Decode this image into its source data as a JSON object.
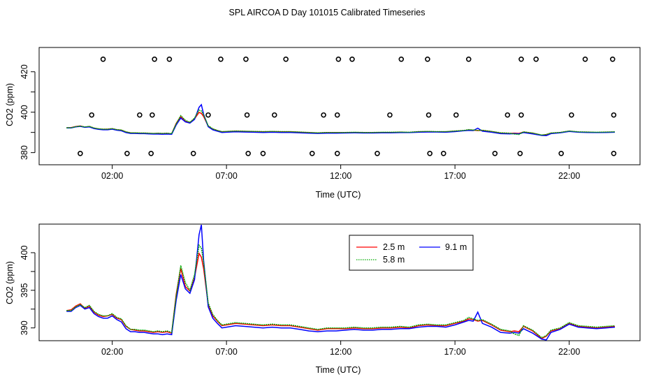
{
  "figure": {
    "title": "SPL AIRCOA D  Day 101015  Calibrated Timeseries"
  },
  "colors": {
    "s2_5": "#ff0000",
    "s5_8": "#00aa00",
    "s9_1": "#0000ff",
    "axis": "#000000"
  },
  "chart_data": [
    {
      "type": "line",
      "title": "SPL AIRCOA D  Day 101015  Calibrated Timeseries",
      "xlabel": "Time (UTC)",
      "ylabel": "CO2 (ppm)",
      "x_tick_labels": [
        "02:00",
        "07:00",
        "12:00",
        "17:00",
        "22:00"
      ],
      "x_tick_hours": [
        2,
        7,
        12,
        17,
        22
      ],
      "xlim_hours": [
        -1.2,
        25.1
      ],
      "y_ticks": [
        380,
        400,
        420
      ],
      "ylim": [
        374,
        432
      ],
      "grid": false,
      "series": [
        {
          "name": "2.5 m",
          "color": "#ff0000",
          "style": "solid"
        },
        {
          "name": "5.8 m",
          "color": "#00aa00",
          "style": "dotted"
        },
        {
          "name": "9.1 m",
          "color": "#0000ff",
          "style": "solid"
        }
      ],
      "series_source": "shared_timeseries",
      "calibration_points": [
        {
          "hour": 0.6,
          "value": 379.6
        },
        {
          "hour": 1.1,
          "value": 398.6
        },
        {
          "hour": 1.6,
          "value": 426.2
        },
        {
          "hour": 2.65,
          "value": 379.6
        },
        {
          "hour": 3.2,
          "value": 398.6
        },
        {
          "hour": 3.7,
          "value": 379.6
        },
        {
          "hour": 3.75,
          "value": 398.6
        },
        {
          "hour": 3.85,
          "value": 426.2
        },
        {
          "hour": 4.5,
          "value": 426.2
        },
        {
          "hour": 5.55,
          "value": 379.6
        },
        {
          "hour": 6.2,
          "value": 398.6
        },
        {
          "hour": 6.75,
          "value": 426.2
        },
        {
          "hour": 7.85,
          "value": 426.2
        },
        {
          "hour": 7.9,
          "value": 398.6
        },
        {
          "hour": 7.95,
          "value": 379.6
        },
        {
          "hour": 8.6,
          "value": 379.6
        },
        {
          "hour": 9.1,
          "value": 398.6
        },
        {
          "hour": 9.6,
          "value": 426.2
        },
        {
          "hour": 10.75,
          "value": 379.6
        },
        {
          "hour": 11.25,
          "value": 398.6
        },
        {
          "hour": 11.85,
          "value": 379.6
        },
        {
          "hour": 11.85,
          "value": 398.6
        },
        {
          "hour": 11.9,
          "value": 426.2
        },
        {
          "hour": 12.5,
          "value": 426.2
        },
        {
          "hour": 13.6,
          "value": 379.6
        },
        {
          "hour": 14.15,
          "value": 398.6
        },
        {
          "hour": 14.65,
          "value": 426.2
        },
        {
          "hour": 15.8,
          "value": 426.2
        },
        {
          "hour": 15.85,
          "value": 398.6
        },
        {
          "hour": 15.9,
          "value": 379.6
        },
        {
          "hour": 16.5,
          "value": 379.6
        },
        {
          "hour": 17.05,
          "value": 398.6
        },
        {
          "hour": 17.6,
          "value": 426.2
        },
        {
          "hour": 18.75,
          "value": 379.6
        },
        {
          "hour": 19.3,
          "value": 398.6
        },
        {
          "hour": 19.85,
          "value": 379.6
        },
        {
          "hour": 19.9,
          "value": 398.6
        },
        {
          "hour": 19.9,
          "value": 426.2
        },
        {
          "hour": 20.55,
          "value": 426.2
        },
        {
          "hour": 21.65,
          "value": 379.6
        },
        {
          "hour": 22.1,
          "value": 398.6
        },
        {
          "hour": 22.7,
          "value": 426.2
        },
        {
          "hour": 23.9,
          "value": 426.2
        },
        {
          "hour": 23.95,
          "value": 398.6
        },
        {
          "hour": 23.95,
          "value": 379.6
        }
      ]
    },
    {
      "type": "line",
      "xlabel": "Time (UTC)",
      "ylabel": "CO2 (ppm)",
      "x_tick_labels": [
        "02:00",
        "07:00",
        "12:00",
        "17:00",
        "22:00"
      ],
      "x_tick_hours": [
        2,
        7,
        12,
        17,
        22
      ],
      "xlim_hours": [
        -1.2,
        25.1
      ],
      "y_ticks": [
        390,
        395,
        400
      ],
      "ylim": [
        388.3,
        403.8
      ],
      "grid": false,
      "legend": {
        "position": "top-center"
      },
      "legend_labels": [
        "2.5 m",
        "5.8 m",
        "9.1 m"
      ],
      "x": [
        0.0,
        0.2,
        0.4,
        0.6,
        0.8,
        1.0,
        1.2,
        1.4,
        1.6,
        1.8,
        2.0,
        2.2,
        2.4,
        2.6,
        2.8,
        3.0,
        3.2,
        3.4,
        3.6,
        3.8,
        4.0,
        4.2,
        4.4,
        4.6,
        4.8,
        5.0,
        5.2,
        5.4,
        5.6,
        5.8,
        5.9,
        6.0,
        6.2,
        6.4,
        6.6,
        6.8,
        7.0,
        7.4,
        7.8,
        8.2,
        8.6,
        9.0,
        9.4,
        9.8,
        10.2,
        10.6,
        11.0,
        11.4,
        11.8,
        12.2,
        12.6,
        13.0,
        13.4,
        13.8,
        14.2,
        14.6,
        15.0,
        15.4,
        15.8,
        16.2,
        16.6,
        17.0,
        17.4,
        17.6,
        17.8,
        18.0,
        18.2,
        18.6,
        19.0,
        19.4,
        19.6,
        19.8,
        20.0,
        20.4,
        20.8,
        21.0,
        21.2,
        21.6,
        22.0,
        22.4,
        22.8,
        23.2,
        23.6,
        24.0
      ],
      "series": [
        {
          "name": "2.5 m",
          "color": "#ff0000",
          "values": [
            392.3,
            392.4,
            392.9,
            393.2,
            392.6,
            392.9,
            392.1,
            391.7,
            391.5,
            391.6,
            391.8,
            391.3,
            391.1,
            390.2,
            389.8,
            389.7,
            389.6,
            389.6,
            389.5,
            389.4,
            389.5,
            389.4,
            389.5,
            389.3,
            394.5,
            397.9,
            395.5,
            394.9,
            396.7,
            399.9,
            399.4,
            397.9,
            393.1,
            391.6,
            390.9,
            390.3,
            390.4,
            390.6,
            390.5,
            390.4,
            390.3,
            390.4,
            390.3,
            390.3,
            390.1,
            389.9,
            389.7,
            389.9,
            389.9,
            389.9,
            390.0,
            389.9,
            389.9,
            390.0,
            390.0,
            390.1,
            390.0,
            390.3,
            390.4,
            390.3,
            390.3,
            390.6,
            390.9,
            391.2,
            391.1,
            390.9,
            391.0,
            390.4,
            389.7,
            389.5,
            389.6,
            389.5,
            390.2,
            389.6,
            388.6,
            388.9,
            389.6,
            389.9,
            390.6,
            390.2,
            390.1,
            390.0,
            390.1,
            390.2
          ]
        },
        {
          "name": "5.8 m",
          "color": "#00aa00",
          "values": [
            392.3,
            392.3,
            392.8,
            393.1,
            392.7,
            393.0,
            392.2,
            391.8,
            391.6,
            391.6,
            391.9,
            391.4,
            391.2,
            390.3,
            389.8,
            389.8,
            389.7,
            389.7,
            389.6,
            389.5,
            389.6,
            389.5,
            389.6,
            389.4,
            394.3,
            398.3,
            396.0,
            395.0,
            397.1,
            401.0,
            400.6,
            398.7,
            393.3,
            391.8,
            391.0,
            390.4,
            390.5,
            390.7,
            390.6,
            390.5,
            390.4,
            390.5,
            390.4,
            390.4,
            390.2,
            390.0,
            389.8,
            390.0,
            390.0,
            390.0,
            390.1,
            390.0,
            390.0,
            390.1,
            390.1,
            390.2,
            390.1,
            390.4,
            390.5,
            390.4,
            390.4,
            390.7,
            391.0,
            391.4,
            391.2,
            391.0,
            391.1,
            390.5,
            389.8,
            389.6,
            389.2,
            389.0,
            390.3,
            389.7,
            388.7,
            389.0,
            389.7,
            390.0,
            390.7,
            390.3,
            390.2,
            390.1,
            390.2,
            390.3
          ]
        },
        {
          "name": "9.1 m",
          "color": "#0000ff",
          "values": [
            392.2,
            392.2,
            392.7,
            393.0,
            392.5,
            392.7,
            391.9,
            391.5,
            391.3,
            391.3,
            391.6,
            391.1,
            390.8,
            389.9,
            389.5,
            389.5,
            389.4,
            389.4,
            389.3,
            389.2,
            389.2,
            389.1,
            389.2,
            389.1,
            393.7,
            397.1,
            395.2,
            394.6,
            396.4,
            402.4,
            403.7,
            399.0,
            392.8,
            391.3,
            390.6,
            390.0,
            390.1,
            390.3,
            390.2,
            390.1,
            390.0,
            390.1,
            390.0,
            390.0,
            389.8,
            389.6,
            389.5,
            389.6,
            389.6,
            389.7,
            389.8,
            389.7,
            389.7,
            389.8,
            389.8,
            389.9,
            389.9,
            390.1,
            390.2,
            390.2,
            390.1,
            390.4,
            390.8,
            391.0,
            390.9,
            392.1,
            390.6,
            390.1,
            389.4,
            389.3,
            389.4,
            389.3,
            389.9,
            389.3,
            388.5,
            388.4,
            389.4,
            389.8,
            390.5,
            390.1,
            390.0,
            389.9,
            390.0,
            390.1
          ]
        }
      ]
    }
  ]
}
